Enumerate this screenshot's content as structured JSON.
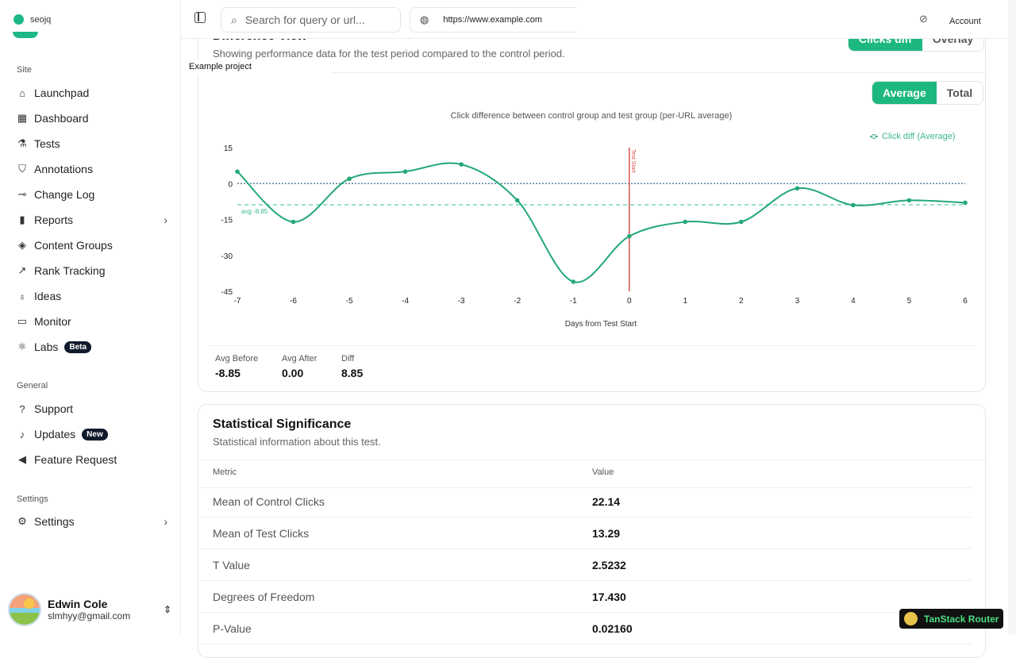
{
  "sidebar": {
    "brand": "seojq",
    "sections": {
      "site": "Site",
      "general": "General",
      "settings": "Settings"
    },
    "site_items": [
      {
        "label": "Launchpad",
        "icon": "home-icon"
      },
      {
        "label": "Dashboard",
        "icon": "grid-icon"
      },
      {
        "label": "Tests",
        "icon": "flask-icon"
      },
      {
        "label": "Annotations",
        "icon": "bookmark-icon"
      },
      {
        "label": "Change Log",
        "icon": "commit-icon"
      },
      {
        "label": "Reports",
        "icon": "bar-chart-icon"
      },
      {
        "label": "Content Groups",
        "icon": "layers-icon"
      },
      {
        "label": "Rank Tracking",
        "icon": "trending-up-icon"
      },
      {
        "label": "Ideas",
        "icon": "lightbulb-icon"
      },
      {
        "label": "Monitor",
        "icon": "monitor-icon"
      },
      {
        "label": "Labs",
        "icon": "labs-icon",
        "badge": "Beta"
      }
    ],
    "general_items": [
      {
        "label": "Support",
        "icon": "help-icon"
      },
      {
        "label": "Updates",
        "icon": "bell-icon",
        "badge": "New"
      },
      {
        "label": "Feature Request",
        "icon": "megaphone-icon"
      }
    ],
    "settings_items": [
      {
        "label": "Settings",
        "icon": "gear-icon"
      }
    ],
    "user": {
      "name": "Edwin Cole",
      "email": "slmhyy@gmail.com"
    }
  },
  "header": {
    "search_placeholder": "Search for query or url...",
    "url": "https://www.example.com",
    "account": "Account",
    "project_tooltip": "Example project"
  },
  "difference_view": {
    "title": "Difference View",
    "subtitle": "Showing performance data for the test period compared to the control period.",
    "view_toggle": [
      "Clicks diff",
      "Overlay"
    ],
    "metric_toggle": [
      "Average",
      "Total"
    ],
    "stats": [
      {
        "label": "Avg Before",
        "value": "-8.85"
      },
      {
        "label": "Avg After",
        "value": "0.00"
      },
      {
        "label": "Diff",
        "value": "8.85"
      }
    ]
  },
  "chart_data": {
    "type": "line",
    "title": "Click difference between control group and test group (per-URL average)",
    "xlabel": "Days from Test Start",
    "ylabel": "",
    "x": [
      -7,
      -6,
      -5,
      -4,
      -3,
      -2,
      -1,
      0,
      1,
      2,
      3,
      4,
      5,
      6
    ],
    "series": [
      {
        "name": "Click diff (Average)",
        "values": [
          5,
          -16,
          2,
          5,
          8,
          -7,
          -41,
          -22,
          -16,
          -16,
          -2,
          -9,
          -7,
          -8
        ],
        "color": "#22a876"
      }
    ],
    "yticks": [
      15,
      0,
      -15,
      -30,
      -45
    ],
    "ylim": [
      -45,
      15
    ],
    "xlim": [
      -7,
      6
    ],
    "reference_lines": [
      {
        "y": 0,
        "style": "dotted",
        "color": "#3b6e8f"
      },
      {
        "y": -8.85,
        "label": "avg -8.85",
        "style": "dashed",
        "color": "#6fd3a8"
      }
    ],
    "vertical_marker": {
      "x": 0,
      "label": "Test Start",
      "color": "#d9534f"
    },
    "legend": "top-right"
  },
  "significance": {
    "title": "Statistical Significance",
    "subtitle": "Statistical information about this test.",
    "columns": [
      "Metric",
      "Value"
    ],
    "rows": [
      [
        "Mean of Control Clicks",
        "22.14"
      ],
      [
        "Mean of Test Clicks",
        "13.29"
      ],
      [
        "T Value",
        "2.5232"
      ],
      [
        "Degrees of Freedom",
        "17.430"
      ],
      [
        "P-Value",
        "0.02160"
      ]
    ]
  },
  "devtools": {
    "label": "TanStack Router"
  }
}
